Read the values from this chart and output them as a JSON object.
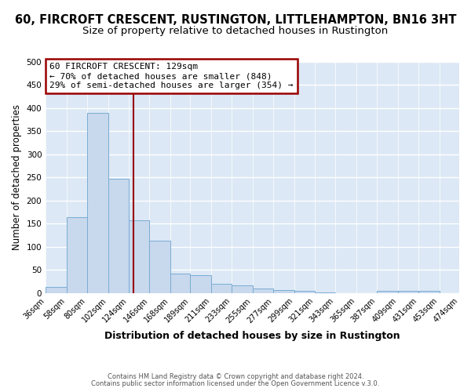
{
  "title": "60, FIRCROFT CRESCENT, RUSTINGTON, LITTLEHAMPTON, BN16 3HT",
  "subtitle": "Size of property relative to detached houses in Rustington",
  "xlabel": "Distribution of detached houses by size in Rustington",
  "ylabel": "Number of detached properties",
  "bar_color": "#c8d8ed",
  "bar_edge_color": "#7aadd4",
  "plot_bg_color": "#dce8f5",
  "grid_color": "#ffffff",
  "fig_bg_color": "#ffffff",
  "bin_edges": [
    36,
    58,
    80,
    102,
    124,
    146,
    168,
    189,
    211,
    233,
    255,
    277,
    299,
    321,
    343,
    365,
    387,
    409,
    431,
    453,
    474
  ],
  "bin_labels": [
    "36sqm",
    "58sqm",
    "80sqm",
    "102sqm",
    "124sqm",
    "146sqm",
    "168sqm",
    "189sqm",
    "211sqm",
    "233sqm",
    "255sqm",
    "277sqm",
    "299sqm",
    "321sqm",
    "343sqm",
    "365sqm",
    "387sqm",
    "409sqm",
    "431sqm",
    "453sqm",
    "474sqm"
  ],
  "counts": [
    13,
    165,
    390,
    248,
    157,
    113,
    42,
    39,
    20,
    16,
    10,
    7,
    4,
    1,
    0,
    0,
    5,
    5,
    5,
    0
  ],
  "vline_x": 129,
  "vline_color": "#990000",
  "annotation_box_color": "#990000",
  "annotation_text_line1": "60 FIRCROFT CRESCENT: 129sqm",
  "annotation_text_line2": "← 70% of detached houses are smaller (848)",
  "annotation_text_line3": "29% of semi-detached houses are larger (354) →",
  "footnote1": "Contains HM Land Registry data © Crown copyright and database right 2024.",
  "footnote2": "Contains public sector information licensed under the Open Government Licence v.3.0.",
  "ylim": [
    0,
    500
  ],
  "yticks": [
    0,
    50,
    100,
    150,
    200,
    250,
    300,
    350,
    400,
    450,
    500
  ],
  "title_fontsize": 10.5,
  "subtitle_fontsize": 9.5,
  "xlabel_fontsize": 9,
  "ylabel_fontsize": 8.5,
  "tick_fontsize": 7,
  "annot_fontsize": 8,
  "footnote_fontsize": 6
}
